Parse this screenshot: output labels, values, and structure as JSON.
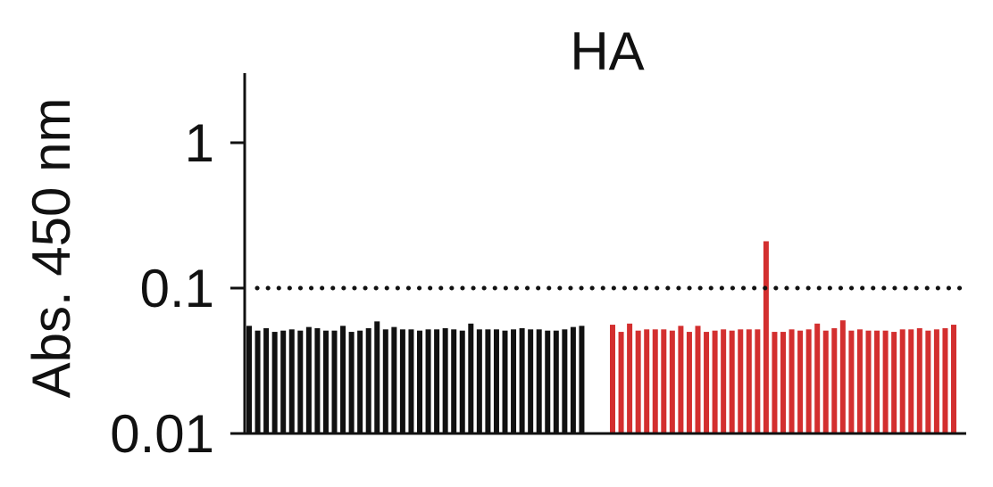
{
  "chart_data": {
    "type": "bar",
    "title": "HA",
    "ylabel": "Abs. 450 nm",
    "xlabel": "",
    "yscale": "log",
    "ylim": [
      0.01,
      2.7
    ],
    "yticks": [
      {
        "value": 1,
        "label": "1"
      },
      {
        "value": 0.1,
        "label": "0.1"
      },
      {
        "value": 0.01,
        "label": "0.01"
      }
    ],
    "threshold": 0.1,
    "grid": false,
    "series": [
      {
        "color": "#111111",
        "values": [
          0.055,
          0.051,
          0.053,
          0.05,
          0.051,
          0.052,
          0.051,
          0.054,
          0.053,
          0.051,
          0.051,
          0.055,
          0.05,
          0.051,
          0.053,
          0.059,
          0.052,
          0.054,
          0.052,
          0.052,
          0.051,
          0.052,
          0.052,
          0.053,
          0.052,
          0.051,
          0.057,
          0.052,
          0.052,
          0.052,
          0.051,
          0.052,
          0.053,
          0.052,
          0.052,
          0.051,
          0.051,
          0.052,
          0.054,
          0.055
        ]
      },
      {
        "color": "#d32f2f",
        "values": [
          0.056,
          0.05,
          0.057,
          0.051,
          0.052,
          0.052,
          0.052,
          0.051,
          0.055,
          0.05,
          0.055,
          0.05,
          0.051,
          0.052,
          0.051,
          0.052,
          0.052,
          0.052,
          0.21,
          0.05,
          0.05,
          0.052,
          0.051,
          0.052,
          0.057,
          0.051,
          0.053,
          0.06,
          0.051,
          0.052,
          0.051,
          0.051,
          0.051,
          0.05,
          0.052,
          0.052,
          0.053,
          0.051,
          0.052,
          0.053,
          0.056
        ]
      }
    ]
  }
}
